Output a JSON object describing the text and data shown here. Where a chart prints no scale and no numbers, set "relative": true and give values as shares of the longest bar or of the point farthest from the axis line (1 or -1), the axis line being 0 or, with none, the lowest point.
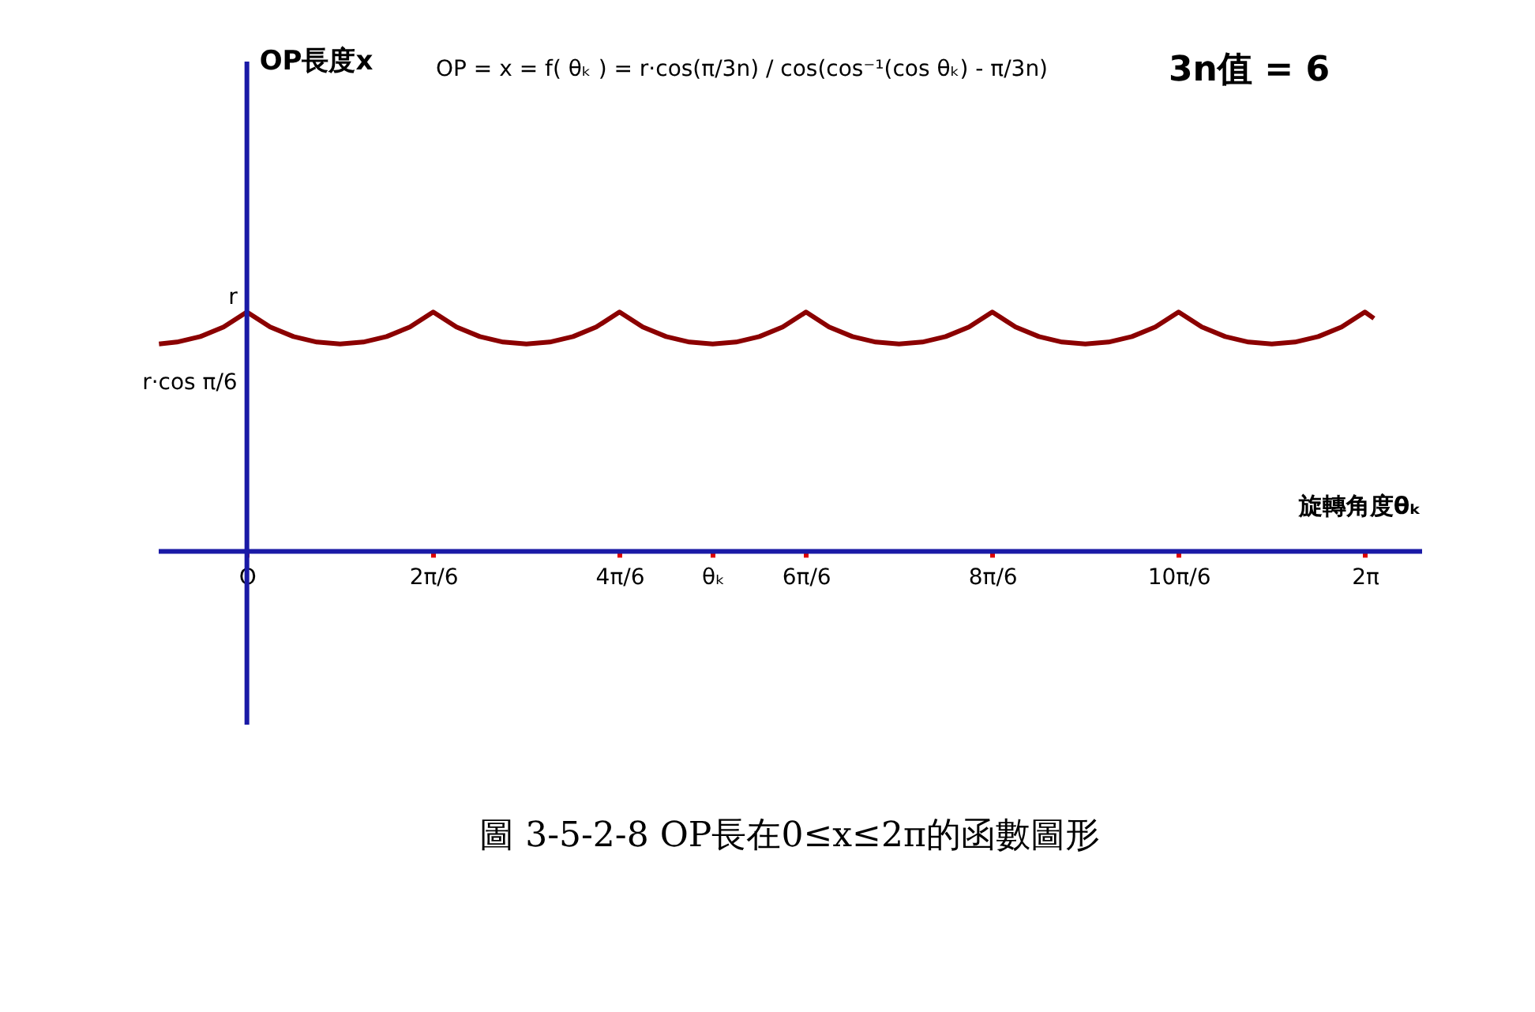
{
  "chart_data": {
    "type": "line",
    "annotations": [
      "OP = x = f( θₖ ) = r·cos(π/3n) / cos(cos⁻¹(cos θₖ) - π/3n)",
      "3n值 = 6",
      "圖 3-5-2-8 OP長在0≤x≤2π的函數圖形",
      "OP長度x",
      "r·cos π/6",
      {
        "text": "r",
        "x": 0,
        "y": 1
      }
    ],
    "ref_lines": [
      {
        "axis": "x",
        "value": 0,
        "color": "#1a1aa6"
      }
    ],
    "relative": true,
    "xlabel": "旋轉角度θₖ",
    "x": [
      -0.494,
      -0.393,
      -0.262,
      -0.131,
      0,
      0.131,
      0.262,
      0.393,
      0.524,
      0.654,
      0.785,
      0.916,
      1.047,
      1.178,
      1.309,
      1.44,
      1.571,
      1.702,
      1.833,
      1.963,
      2.094,
      2.225,
      2.356,
      2.487,
      2.618,
      2.749,
      2.88,
      3.011,
      3.142,
      3.272,
      3.403,
      3.534,
      3.665,
      3.796,
      3.927,
      4.058,
      4.189,
      4.32,
      4.451,
      4.581,
      4.712,
      4.843,
      4.974,
      5.105,
      5.236,
      5.367,
      5.498,
      5.629,
      5.76,
      5.89,
      6.021,
      6.152,
      6.283,
      6.334
    ],
    "series": [
      {
        "color": "#8b0000",
        "values": [
          0.866,
          0.874,
          0.897,
          0.937,
          1,
          0.937,
          0.897,
          0.874,
          0.866,
          0.874,
          0.897,
          0.937,
          1,
          0.937,
          0.897,
          0.874,
          0.866,
          0.874,
          0.897,
          0.937,
          1,
          0.937,
          0.897,
          0.874,
          0.866,
          0.874,
          0.897,
          0.937,
          1,
          0.937,
          0.897,
          0.874,
          0.866,
          0.874,
          0.897,
          0.937,
          1,
          0.937,
          0.897,
          0.874,
          0.866,
          0.874,
          0.897,
          0.937,
          1,
          0.937,
          0.897,
          0.874,
          0.866,
          0.874,
          0.897,
          0.937,
          1,
          0.973
        ]
      }
    ],
    "xlim": [
      -0.5,
      6.6
    ],
    "xticks": [
      {
        "value": 0,
        "label": "O"
      },
      {
        "value": 1.047,
        "label": "2π/6"
      },
      {
        "value": 2.094,
        "label": "4π/6"
      },
      {
        "value": 2.618,
        "label": "θₖ"
      },
      {
        "value": 3.142,
        "label": "6π/6"
      },
      {
        "value": 4.189,
        "label": "8π/6"
      },
      {
        "value": 5.236,
        "label": "10π/6"
      },
      {
        "value": 6.283,
        "label": "2π"
      }
    ],
    "grid": false,
    "marker": "none",
    "line_style": "solid"
  }
}
